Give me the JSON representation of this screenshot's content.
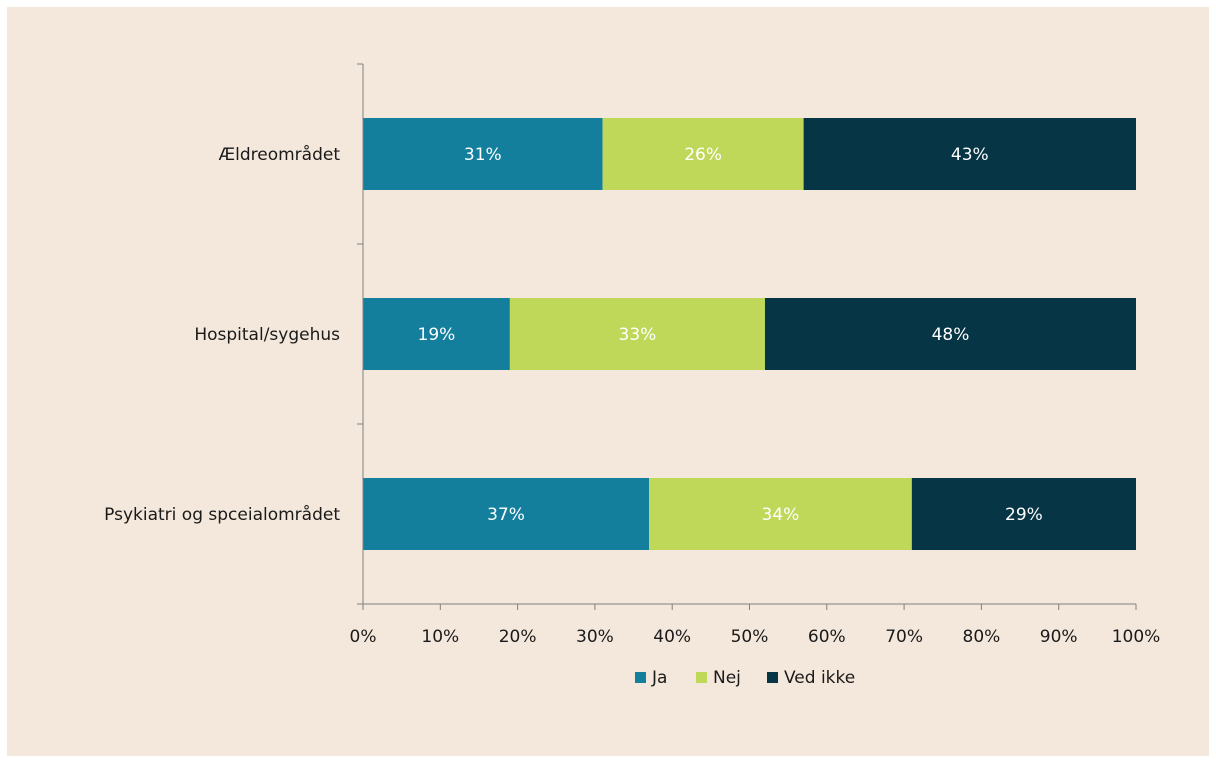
{
  "chart_data": {
    "type": "bar",
    "orientation": "horizontal",
    "stacked": true,
    "categories": [
      "Ældreområdet",
      "Hospital/sygehus",
      "Psykiatri og spceialområdet"
    ],
    "series": [
      {
        "name": "Ja",
        "values": [
          31,
          19,
          37
        ],
        "labels": [
          "31%",
          "19%",
          "37%"
        ],
        "color": "#137f9d"
      },
      {
        "name": "Nej",
        "values": [
          26,
          33,
          34
        ],
        "labels": [
          "26%",
          "33%",
          "34%"
        ],
        "color": "#bfd85a"
      },
      {
        "name": "Ved ikke",
        "values": [
          43,
          48,
          29
        ],
        "labels": [
          "43%",
          "48%",
          "29%"
        ],
        "color": "#063545"
      }
    ],
    "xlim": [
      0,
      100
    ],
    "x_ticks": [
      "0%",
      "10%",
      "20%",
      "30%",
      "40%",
      "50%",
      "60%",
      "70%",
      "80%",
      "90%",
      "100%"
    ],
    "grid": false,
    "legend_position": "bottom",
    "background": "#f4e8dc"
  }
}
